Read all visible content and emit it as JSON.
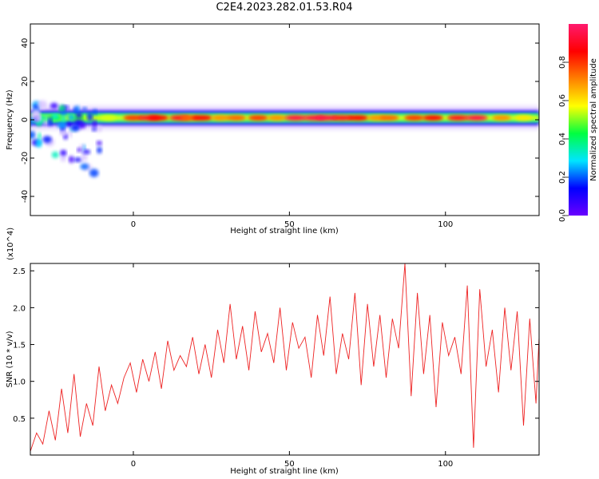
{
  "title": "C2E4.2023.282.01.53.R04",
  "chart_data": [
    {
      "type": "heatmap",
      "title": "",
      "xlabel": "Height of straight line (km)",
      "ylabel": "Frequency (Hz)",
      "xlim": [
        -33,
        130
      ],
      "ylim": [
        -50,
        50
      ],
      "x_ticks": [
        0,
        50,
        100
      ],
      "y_ticks": [
        -40,
        -20,
        0,
        20,
        40
      ],
      "colorbar": {
        "label": "Normalized spectral amplitude",
        "range": [
          0.0,
          1.0
        ],
        "ticks": [
          0.0,
          0.2,
          0.4,
          0.6,
          0.8
        ],
        "colormap": [
          "#6a00ff",
          "#0000ff",
          "#00e5ff",
          "#00ff40",
          "#ffff00",
          "#ff8000",
          "#ff0000",
          "#ff1a6e"
        ]
      },
      "band": {
        "center_hz": 1,
        "half_width_hz": 3,
        "x_range": [
          -33,
          130
        ],
        "peak_x": [
          -30,
          -25,
          -18,
          -8,
          0,
          5,
          8,
          15,
          18,
          22,
          28,
          33,
          40,
          46,
          52,
          58,
          62,
          67,
          72,
          78,
          82,
          90,
          96,
          104,
          110,
          118,
          125
        ],
        "peak_amplitude": [
          0.35,
          0.4,
          0.45,
          0.55,
          0.8,
          0.9,
          0.85,
          0.9,
          0.75,
          0.85,
          0.7,
          0.75,
          0.8,
          0.7,
          0.95,
          0.95,
          0.95,
          0.9,
          0.85,
          0.7,
          0.75,
          0.8,
          0.85,
          0.9,
          0.95,
          0.7,
          0.6
        ]
      },
      "scatter_region": {
        "x_range": [
          -33,
          -10
        ],
        "y_range": [
          -32,
          8
        ]
      }
    },
    {
      "type": "line",
      "title": "",
      "xlabel": "Height of straight line (km)",
      "ylabel": "SNR (10 * v/v)",
      "y_multiplier": "(x10^4)",
      "xlim": [
        -33,
        130
      ],
      "ylim": [
        0,
        26000
      ],
      "x_ticks": [
        0,
        50,
        100
      ],
      "y_ticks": [
        5000,
        10000,
        15000,
        20000,
        25000
      ],
      "y_tick_labels": [
        "0.5",
        "1.0",
        "1.5",
        "2.0",
        "2.5"
      ],
      "color": "#ee2222",
      "series": [
        {
          "name": "",
          "x": [
            -33,
            -31,
            -29,
            -27,
            -25,
            -23,
            -21,
            -19,
            -17,
            -15,
            -13,
            -11,
            -9,
            -7,
            -5,
            -3,
            -1,
            1,
            3,
            5,
            7,
            9,
            11,
            13,
            15,
            17,
            19,
            21,
            23,
            25,
            27,
            29,
            31,
            33,
            35,
            37,
            39,
            41,
            43,
            45,
            47,
            49,
            51,
            53,
            55,
            57,
            59,
            61,
            63,
            65,
            67,
            69,
            71,
            73,
            75,
            77,
            79,
            81,
            83,
            85,
            87,
            89,
            91,
            93,
            95,
            97,
            99,
            101,
            103,
            105,
            107,
            109,
            111,
            113,
            115,
            117,
            119,
            121,
            123,
            125,
            127,
            129,
            130
          ],
          "y": [
            500,
            3000,
            1500,
            6000,
            2000,
            9000,
            3000,
            11000,
            2500,
            7000,
            4000,
            12000,
            6000,
            9500,
            7000,
            10500,
            12500,
            8500,
            13000,
            10000,
            14000,
            9000,
            15500,
            11500,
            13500,
            12000,
            16000,
            11000,
            15000,
            10500,
            17000,
            12500,
            20500,
            13000,
            17500,
            11500,
            19500,
            14000,
            16500,
            12500,
            20000,
            11500,
            18000,
            14500,
            16000,
            10500,
            19000,
            13500,
            21500,
            11000,
            16500,
            13000,
            22000,
            9500,
            20500,
            12000,
            19000,
            10500,
            18500,
            14500,
            26000,
            8000,
            22000,
            11000,
            19000,
            6500,
            18000,
            13500,
            16000,
            11000,
            23000,
            1000,
            22500,
            12000,
            17000,
            8500,
            20000,
            11500,
            19500,
            4000,
            18500,
            7000,
            16000
          ]
        }
      ]
    }
  ]
}
